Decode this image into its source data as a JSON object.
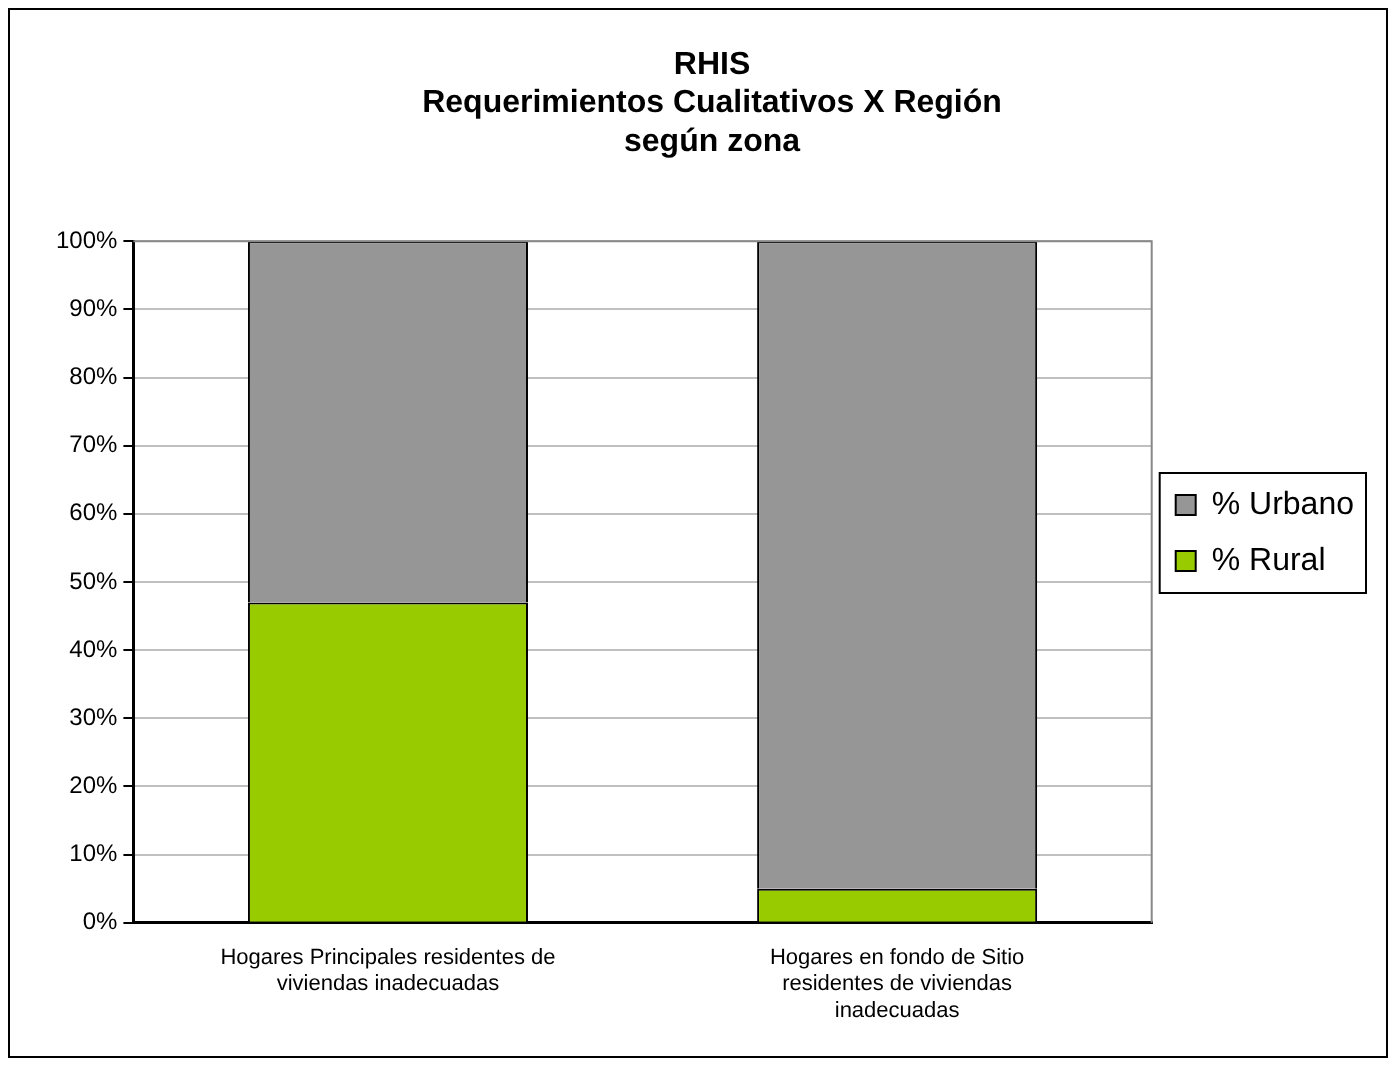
{
  "chart_data": {
    "type": "bar",
    "title": "RHIS\nRequerimientos Cualitativos X Región\nsegún zona",
    "categories": [
      "Hogares Principales residentes de viviendas inadecuadas",
      "Hogares en fondo de Sitio residentes de viviendas inadecuadas"
    ],
    "stacked": true,
    "series": [
      {
        "name": "% Rural",
        "color": "#99cc00",
        "values": [
          47,
          5
        ]
      },
      {
        "name": "% Urbano",
        "color": "#969696",
        "values": [
          53,
          95
        ]
      }
    ],
    "ylim": [
      0,
      100
    ],
    "yticks": [
      {
        "value": 0,
        "label": "0%"
      },
      {
        "value": 10,
        "label": "10%"
      },
      {
        "value": 20,
        "label": "20%"
      },
      {
        "value": 30,
        "label": "30%"
      },
      {
        "value": 40,
        "label": "40%"
      },
      {
        "value": 50,
        "label": "50%"
      },
      {
        "value": 60,
        "label": "60%"
      },
      {
        "value": 70,
        "label": "70%"
      },
      {
        "value": 80,
        "label": "80%"
      },
      {
        "value": 90,
        "label": "90%"
      },
      {
        "value": 100,
        "label": "100%"
      }
    ],
    "grid": "y",
    "legend": "right"
  }
}
